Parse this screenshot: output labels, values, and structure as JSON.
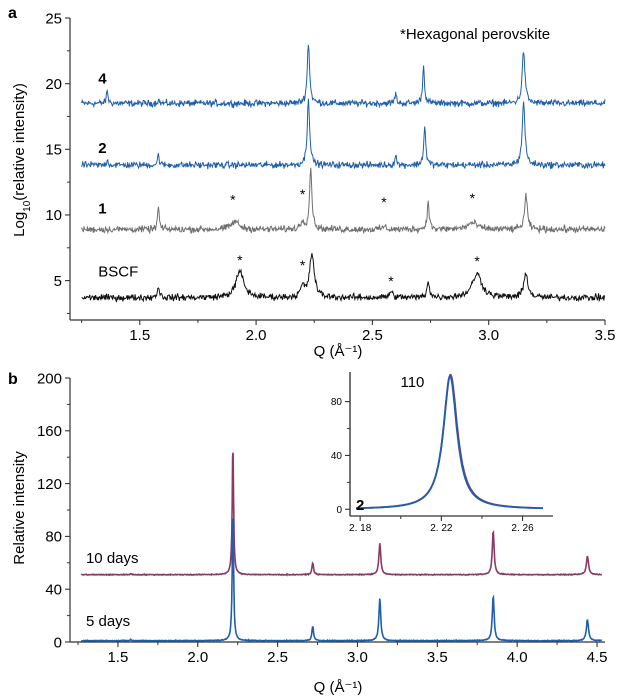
{
  "panels": {
    "a": {
      "letter": "a"
    },
    "b": {
      "letter": "b"
    }
  },
  "colors": {
    "blue": "#1f5fae",
    "gray": "#6f6f6f",
    "black": "#111111",
    "purple": "#8a3a63",
    "axis": "#333333"
  },
  "chart_data": [
    {
      "type": "line",
      "panel": "a",
      "annotation": "*Hexagonal perovskite",
      "ylabel_html": "Log<tspan baseline-shift='sub' font-size='10'>10</tspan>(relative intensity)",
      "ylabel": "Log10(relative intensity)",
      "xlabel": "Q (Å⁻¹)",
      "xlim": [
        1.2,
        3.5
      ],
      "ylim": [
        2,
        25
      ],
      "xticks": [
        "1.5",
        "2.0",
        "2.5",
        "3.0",
        "3.5"
      ],
      "yticks": [
        "5",
        "10",
        "15",
        "20",
        "25"
      ],
      "series": [
        {
          "name": "4",
          "color": "#1f5fae",
          "baseline": 18.5,
          "peaks": [
            [
              1.36,
              1.0,
              0.004
            ],
            [
              1.58,
              0.3,
              0.004
            ],
            [
              2.225,
              4.6,
              0.006
            ],
            [
              2.6,
              0.8,
              0.004
            ],
            [
              2.72,
              2.8,
              0.005
            ],
            [
              3.15,
              4.0,
              0.007
            ]
          ],
          "noise": 0.25
        },
        {
          "name": "2",
          "color": "#1f5fae",
          "baseline": 13.8,
          "peaks": [
            [
              1.36,
              0.4,
              0.004
            ],
            [
              1.58,
              0.8,
              0.004
            ],
            [
              2.225,
              5.2,
              0.006
            ],
            [
              2.6,
              0.8,
              0.004
            ],
            [
              2.725,
              3.0,
              0.005
            ],
            [
              3.15,
              4.8,
              0.007
            ]
          ],
          "noise": 0.25
        },
        {
          "name": "1",
          "color": "#6f6f6f",
          "baseline": 8.9,
          "peaks": [
            [
              1.58,
              1.8,
              0.004
            ],
            [
              1.91,
              0.6,
              0.02
            ],
            [
              2.235,
              4.7,
              0.006
            ],
            [
              2.2,
              0.6,
              0.01
            ],
            [
              2.55,
              0.2,
              0.01
            ],
            [
              2.74,
              2.2,
              0.005
            ],
            [
              2.93,
              0.5,
              0.025
            ],
            [
              3.16,
              2.6,
              0.007
            ]
          ],
          "noise": 0.25
        },
        {
          "name": "BSCF",
          "color": "#111111",
          "baseline": 3.7,
          "peaks": [
            [
              1.58,
              0.8,
              0.006
            ],
            [
              1.93,
              2.0,
              0.02
            ],
            [
              2.2,
              0.8,
              0.01
            ],
            [
              2.24,
              3.3,
              0.012
            ],
            [
              2.58,
              0.4,
              0.01
            ],
            [
              2.74,
              1.3,
              0.006
            ],
            [
              2.95,
              1.8,
              0.025
            ],
            [
              3.16,
              1.9,
              0.01
            ]
          ],
          "noise": 0.25
        }
      ],
      "stars": [
        {
          "x": 1.9,
          "y": 10.8
        },
        {
          "x": 2.2,
          "y": 11.2
        },
        {
          "x": 2.55,
          "y": 10.6
        },
        {
          "x": 2.93,
          "y": 10.9
        },
        {
          "x": 1.93,
          "y": 6.2
        },
        {
          "x": 2.2,
          "y": 5.8
        },
        {
          "x": 2.58,
          "y": 4.6
        },
        {
          "x": 2.95,
          "y": 6.1
        }
      ],
      "series_labels": [
        {
          "text": "4",
          "x": 1.27,
          "y": 20.0,
          "bold": true
        },
        {
          "text": "2",
          "x": 1.27,
          "y": 14.7,
          "bold": true
        },
        {
          "text": "1",
          "x": 1.27,
          "y": 10.1,
          "bold": true
        },
        {
          "text": "BSCF",
          "x": 1.27,
          "y": 5.3,
          "bold": false
        }
      ]
    },
    {
      "type": "line",
      "panel": "b",
      "ylabel": "Relative intensity",
      "xlabel": "Q (Å⁻¹)",
      "xlim": [
        1.2,
        4.55
      ],
      "ylim": [
        0,
        200
      ],
      "xticks": [
        "1.5",
        "2.0",
        "2.5",
        "3.0",
        "3.5",
        "4.0",
        "4.5"
      ],
      "yticks": [
        "0",
        "40",
        "80",
        "120",
        "160",
        "200"
      ],
      "series": [
        {
          "name": "10 days",
          "color": "#8a3a63",
          "baseline": 51,
          "peaks": [
            [
              1.58,
              1,
              0.004
            ],
            [
              2.22,
              99,
              0.005
            ],
            [
              2.72,
              9,
              0.006
            ],
            [
              3.14,
              24,
              0.007
            ],
            [
              3.85,
              33,
              0.007
            ],
            [
              4.44,
              14,
              0.008
            ]
          ],
          "noise": 0.3
        },
        {
          "name": "5 days",
          "color": "#1f5fae",
          "baseline": 1,
          "peaks": [
            [
              1.58,
              1,
              0.004
            ],
            [
              2.22,
              99,
              0.005
            ],
            [
              2.72,
              11,
              0.006
            ],
            [
              3.14,
              32,
              0.007
            ],
            [
              3.85,
              34,
              0.007
            ],
            [
              4.44,
              16,
              0.008
            ]
          ],
          "noise": 0.3
        }
      ],
      "series_labels": [
        {
          "text": "10 days",
          "x": 1.3,
          "y": 60
        },
        {
          "text": "5 days",
          "x": 1.3,
          "y": 12
        }
      ]
    },
    {
      "type": "line",
      "panel": "b-inset",
      "label": "2",
      "peak_label": "110",
      "xlim": [
        2.175,
        2.275
      ],
      "ylim": [
        -5,
        102
      ],
      "xticks": [
        "2. 18",
        "2. 22",
        "2. 26"
      ],
      "yticks": [
        "0",
        "40",
        "80"
      ],
      "series": [
        {
          "name": "10 days",
          "color": "#8a3a63",
          "center": 2.2245,
          "amp": 100,
          "width": 0.0042
        },
        {
          "name": "5 days",
          "color": "#1f5fae",
          "center": 2.2243,
          "amp": 99,
          "width": 0.0041
        }
      ]
    }
  ]
}
